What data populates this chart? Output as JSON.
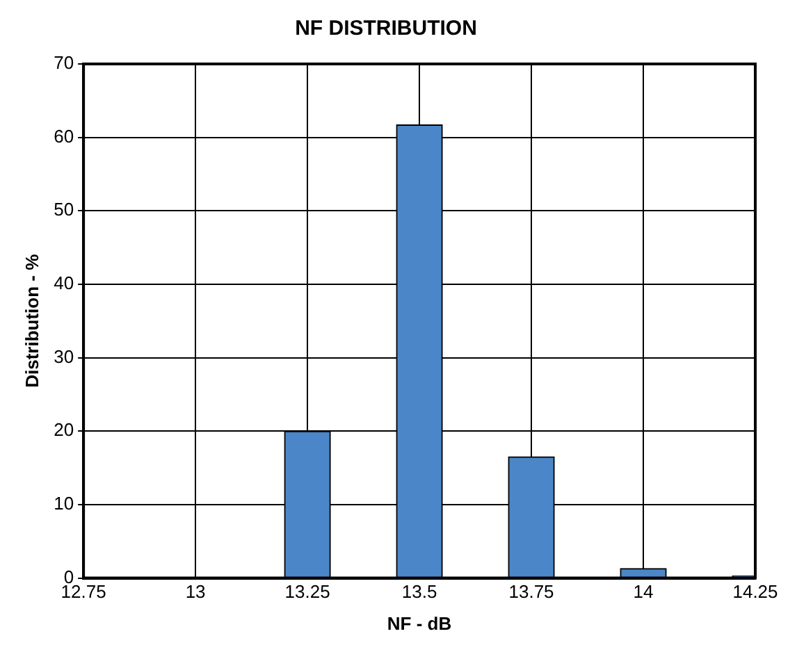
{
  "chart_data": {
    "type": "bar",
    "title": "NF DISTRIBUTION",
    "xlabel": "NF - dB",
    "ylabel": "Distribution - %",
    "x": [
      13.25,
      13.5,
      13.75,
      14,
      14.25
    ],
    "values": [
      20,
      61.7,
      16.5,
      1.3,
      0.3
    ],
    "color": "#4a86c8",
    "xlim": [
      12.75,
      14.25
    ],
    "xticks": [
      12.75,
      13,
      13.25,
      13.5,
      13.75,
      14,
      14.25
    ],
    "ylim": [
      0,
      70
    ],
    "yticks": [
      0,
      10,
      20,
      30,
      40,
      50,
      60,
      70
    ],
    "grid": true,
    "legend": false
  }
}
